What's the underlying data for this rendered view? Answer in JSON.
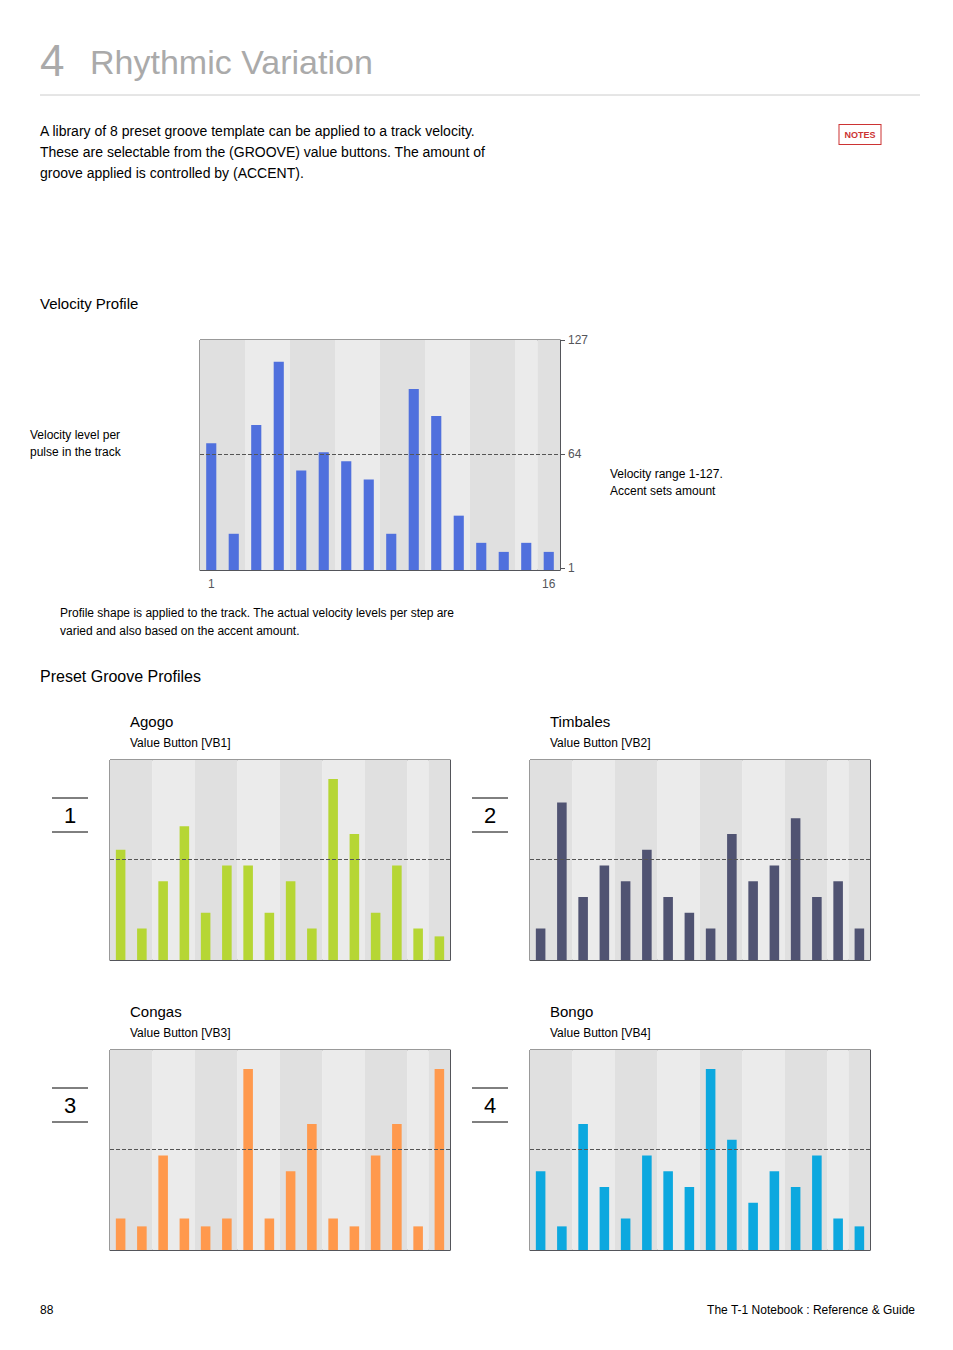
{
  "annotations": [
    "4",
    "Rhythmic Variation",
    "A library of 8 preset groove template can be applied to a track velocity.\nThese are selectable from the (GROOVE) value buttons. The amount of\ngroove applied is controlled by (ACCENT).",
    "NOTES",
    "Preset Groove Profiles",
    "88",
    "The T-1 Notebook : Reference & Guide"
  ],
  "chart_data": [
    {
      "type": "bar",
      "title": "Velocity Profile",
      "categories": [
        "1",
        null,
        null,
        null,
        null,
        null,
        null,
        null,
        null,
        null,
        null,
        null,
        null,
        null,
        null,
        "16"
      ],
      "values": [
        70,
        20,
        80,
        115,
        55,
        65,
        60,
        50,
        20,
        100,
        85,
        30,
        15,
        10,
        15,
        10
      ],
      "ylim": [
        0,
        127
      ],
      "yticks": [
        1,
        64,
        127
      ],
      "grid": false,
      "hlines": [
        64
      ],
      "annotations": [
        "Velocity level per\npulse in the track",
        "Velocity range 1-127.\nAccent sets amount",
        "Profile shape is applied to the track. The actual velocity levels per step are\nvaried and also based on the accent amount."
      ]
    },
    {
      "type": "bar",
      "title": "Agogo",
      "subtitle": "Value Button [VB1]",
      "categories": [
        null,
        null,
        null,
        null,
        null,
        null,
        null,
        null,
        null,
        null,
        null,
        null,
        null,
        null,
        null,
        null
      ],
      "values": [
        70,
        20,
        50,
        85,
        30,
        60,
        60,
        30,
        50,
        20,
        115,
        80,
        30,
        60,
        20,
        15
      ],
      "ylim": [
        0,
        127
      ],
      "yticks": [],
      "grid": false,
      "tick_labels": false,
      "hlines": [
        64
      ],
      "annotations": [
        "1"
      ]
    },
    {
      "type": "bar",
      "title": "Timbales",
      "subtitle": "Value Button [VB2]",
      "categories": [
        null,
        null,
        null,
        null,
        null,
        null,
        null,
        null,
        null,
        null,
        null,
        null,
        null,
        null,
        null,
        null
      ],
      "values": [
        20,
        100,
        40,
        60,
        50,
        70,
        40,
        30,
        20,
        80,
        50,
        60,
        90,
        40,
        50,
        20
      ],
      "ylim": [
        0,
        127
      ],
      "yticks": [],
      "grid": false,
      "tick_labels": false,
      "hlines": [
        64
      ],
      "annotations": [
        "2"
      ]
    },
    {
      "type": "bar",
      "title": "Congas",
      "subtitle": "Value Button [VB3]",
      "categories": [
        null,
        null,
        null,
        null,
        null,
        null,
        null,
        null,
        null,
        null,
        null,
        null,
        null,
        null,
        null,
        null
      ],
      "values": [
        20,
        15,
        60,
        20,
        15,
        20,
        115,
        20,
        50,
        80,
        20,
        15,
        60,
        80,
        15,
        115
      ],
      "ylim": [
        0,
        127
      ],
      "yticks": [],
      "grid": false,
      "tick_labels": false,
      "hlines": [
        64
      ],
      "annotations": [
        "3"
      ]
    },
    {
      "type": "bar",
      "title": "Bongo",
      "subtitle": "Value Button [VB4]",
      "categories": [
        null,
        null,
        null,
        null,
        null,
        null,
        null,
        null,
        null,
        null,
        null,
        null,
        null,
        null,
        null,
        null
      ],
      "values": [
        50,
        15,
        80,
        40,
        20,
        60,
        50,
        40,
        115,
        70,
        30,
        50,
        40,
        60,
        20,
        15
      ],
      "ylim": [
        0,
        127
      ],
      "yticks": [],
      "grid": false,
      "tick_labels": false,
      "hlines": [
        64
      ],
      "annotations": [
        "4"
      ]
    }
  ]
}
